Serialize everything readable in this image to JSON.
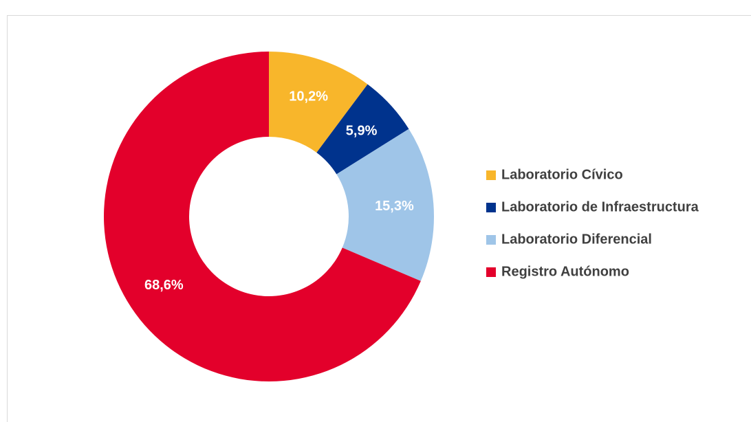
{
  "chart_data": {
    "type": "donut",
    "categories": [
      "Laboratorio Cívico",
      "Laboratorio de Infraestructura",
      "Laboratorio Diferencial",
      "Registro Autónomo"
    ],
    "values": [
      10.2,
      5.9,
      15.3,
      68.6
    ],
    "value_labels": [
      "10,2%",
      "5,9%",
      "15,3%",
      "68,6%"
    ],
    "colors": [
      "#f8b62b",
      "#00338d",
      "#9fc5e8",
      "#e3002b"
    ],
    "legend": "right"
  }
}
